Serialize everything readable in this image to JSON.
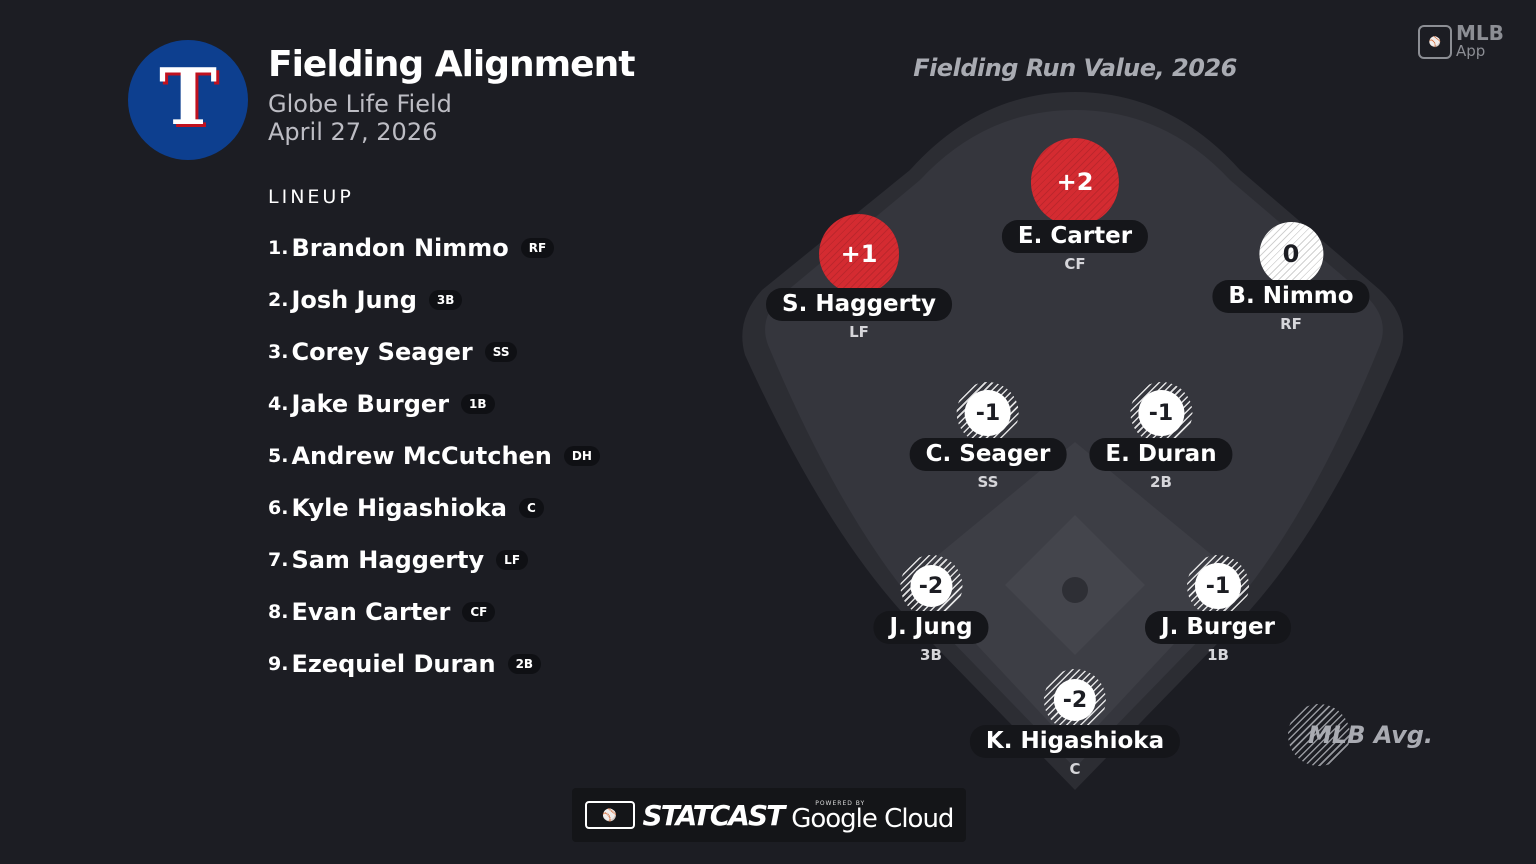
{
  "header": {
    "logo_letter": "T",
    "title": "Fielding Alignment",
    "venue": "Globe Life Field",
    "date": "April 27, 2026"
  },
  "lineup": {
    "label": "LINEUP",
    "items": [
      {
        "num": "1.",
        "name": "Brandon Nimmo",
        "pos": "RF"
      },
      {
        "num": "2.",
        "name": "Josh Jung",
        "pos": "3B"
      },
      {
        "num": "3.",
        "name": "Corey Seager",
        "pos": "SS"
      },
      {
        "num": "4.",
        "name": "Jake Burger",
        "pos": "1B"
      },
      {
        "num": "5.",
        "name": "Andrew McCutchen",
        "pos": "DH"
      },
      {
        "num": "6.",
        "name": "Kyle Higashioka",
        "pos": "C"
      },
      {
        "num": "7.",
        "name": "Sam Haggerty",
        "pos": "LF"
      },
      {
        "num": "8.",
        "name": "Evan Carter",
        "pos": "CF"
      },
      {
        "num": "9.",
        "name": "Ezequiel Duran",
        "pos": "2B"
      }
    ]
  },
  "field": {
    "title": "Fielding Run Value, 2026",
    "players": {
      "cf": {
        "name": "E. Carter",
        "pos": "CF",
        "value": "+2"
      },
      "lf": {
        "name": "S. Haggerty",
        "pos": "LF",
        "value": "+1"
      },
      "rf": {
        "name": "B. Nimmo",
        "pos": "RF",
        "value": "0"
      },
      "ss": {
        "name": "C. Seager",
        "pos": "SS",
        "value": "-1"
      },
      "2b": {
        "name": "E. Duran",
        "pos": "2B",
        "value": "-1"
      },
      "3b": {
        "name": "J. Jung",
        "pos": "3B",
        "value": "-2"
      },
      "1b": {
        "name": "J. Burger",
        "pos": "1B",
        "value": "-1"
      },
      "c": {
        "name": "K. Higashioka",
        "pos": "C",
        "value": "-2"
      }
    },
    "legend": "MLB Avg."
  },
  "branding": {
    "mlb_app_title": "MLB",
    "mlb_app_sub": "App",
    "statcast": "STATCAST",
    "powered_by": "POWERED BY",
    "google_cloud": "Google Cloud"
  },
  "colors": {
    "background": "#1c1d23",
    "positive": "#d42b31",
    "neutral": "#ffffff",
    "team_blue": "#0d3f8f",
    "team_red": "#c0111f"
  }
}
